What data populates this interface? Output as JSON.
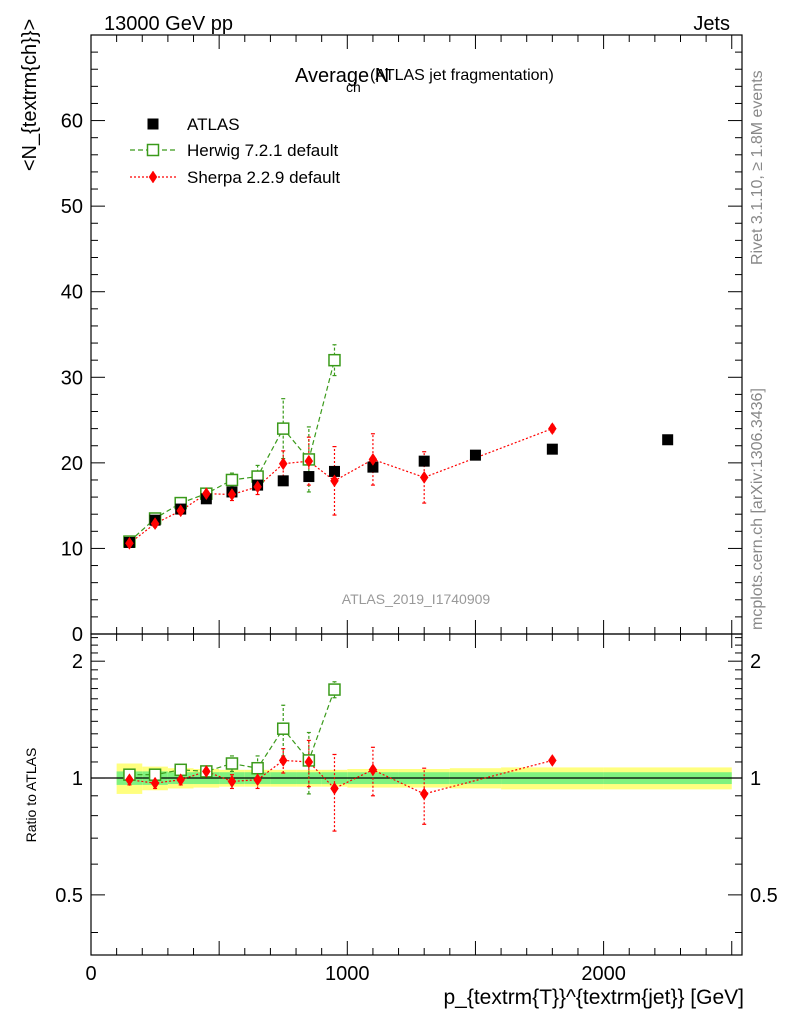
{
  "header": {
    "left": "13000 GeV pp",
    "right": "Jets"
  },
  "side_text": {
    "rivet": "Rivet 3.1.10, ≥ 1.8M events",
    "mcplots": "mcplots.cern.ch [arXiv:1306.3436]"
  },
  "colors": {
    "atlas": "#000000",
    "herwig": "#3a9a1a",
    "sherpa": "#ff0000",
    "band_inner": "#7ff27f",
    "band_outer": "#ffff7f",
    "side_text": "#888888"
  },
  "chart_data": [
    {
      "type": "scatter",
      "title": "Average N",
      "title_sub": "ch",
      "title_suffix": "(ATLAS jet fragmentation)",
      "analysis": "ATLAS_2019_I1740909",
      "ylabel": "<N_{textrm{ch}}>",
      "ylim": [
        0,
        70
      ],
      "xlim": [
        0,
        2540
      ],
      "y_ticks": [
        0,
        10,
        20,
        30,
        40,
        50,
        60
      ],
      "x_ticks": [
        0,
        1000,
        2000
      ],
      "legend_position": "top-left",
      "series": [
        {
          "name": "ATLAS",
          "marker": "filled-square",
          "x": [
            150,
            250,
            350,
            450,
            550,
            650,
            750,
            850,
            950,
            1100,
            1300,
            1500,
            1800,
            2250
          ],
          "y": [
            10.7,
            13.3,
            14.6,
            15.8,
            16.6,
            17.4,
            17.9,
            18.4,
            19.0,
            19.5,
            20.2,
            20.9,
            21.6,
            22.7
          ],
          "err": [
            0.3,
            0.3,
            0.3,
            0.3,
            0.3,
            0.3,
            0.3,
            0.3,
            0.3,
            0.4,
            0.4,
            0.4,
            0.5,
            0.5
          ]
        },
        {
          "name": "Herwig 7.2.1 default",
          "marker": "open-square",
          "line": "dashed",
          "x": [
            150,
            250,
            350,
            450,
            550,
            650,
            750,
            850,
            950
          ],
          "y": [
            10.8,
            13.5,
            15.3,
            16.4,
            18.0,
            18.4,
            24.0,
            20.4,
            32.0
          ],
          "err": [
            0.3,
            0.3,
            0.4,
            0.4,
            0.8,
            1.3,
            3.5,
            3.8,
            1.8
          ]
        },
        {
          "name": "Sherpa 2.2.9 default",
          "marker": "filled-diamond",
          "line": "dotted",
          "x": [
            150,
            250,
            350,
            450,
            550,
            650,
            750,
            850,
            950,
            1100,
            1300,
            1800
          ],
          "y": [
            10.6,
            12.9,
            14.4,
            16.4,
            16.3,
            17.2,
            19.9,
            20.2,
            17.9,
            20.4,
            18.3,
            24.0
          ],
          "err": [
            0.3,
            0.4,
            0.4,
            0.5,
            0.7,
            0.9,
            1.5,
            2.8,
            4.0,
            3.0,
            3.0,
            0.4
          ]
        }
      ]
    },
    {
      "type": "scatter",
      "ylabel": "Ratio to ATLAS",
      "xlabel": "p_{textrm{T}}^{textrm{jet}} [GeV]",
      "ylim": [
        0.35,
        2.35
      ],
      "yscale": "log",
      "xlim": [
        0,
        2540
      ],
      "y_ticks": [
        0.5,
        1,
        2
      ],
      "x_ticks": [
        0,
        1000,
        2000
      ],
      "band": {
        "x_edges": [
          100,
          200,
          300,
          400,
          500,
          600,
          700,
          800,
          900,
          1000,
          1200,
          1400,
          1600,
          2000,
          2500
        ],
        "inner": [
          0.04,
          0.04,
          0.035,
          0.035,
          0.035,
          0.035,
          0.035,
          0.035,
          0.035,
          0.035,
          0.035,
          0.035,
          0.035,
          0.035
        ],
        "outer": [
          0.09,
          0.07,
          0.06,
          0.055,
          0.05,
          0.05,
          0.05,
          0.05,
          0.05,
          0.055,
          0.055,
          0.06,
          0.065,
          0.065
        ]
      },
      "series": [
        {
          "name": "Herwig 7.2.1 default",
          "x": [
            150,
            250,
            350,
            450,
            550,
            650,
            750,
            850,
            950
          ],
          "y": [
            1.02,
            1.02,
            1.05,
            1.04,
            1.09,
            1.06,
            1.34,
            1.11,
            1.69
          ],
          "err": [
            0.03,
            0.03,
            0.03,
            0.03,
            0.05,
            0.08,
            0.2,
            0.2,
            0.08
          ]
        },
        {
          "name": "Sherpa 2.2.9 default",
          "x": [
            150,
            250,
            350,
            450,
            550,
            650,
            750,
            850,
            950,
            1100,
            1300,
            1800
          ],
          "y": [
            0.99,
            0.97,
            0.99,
            1.04,
            0.98,
            0.99,
            1.11,
            1.1,
            0.94,
            1.05,
            0.91,
            1.11
          ],
          "err": [
            0.03,
            0.03,
            0.03,
            0.03,
            0.04,
            0.05,
            0.08,
            0.15,
            0.21,
            0.15,
            0.15,
            0.02
          ]
        }
      ]
    }
  ]
}
